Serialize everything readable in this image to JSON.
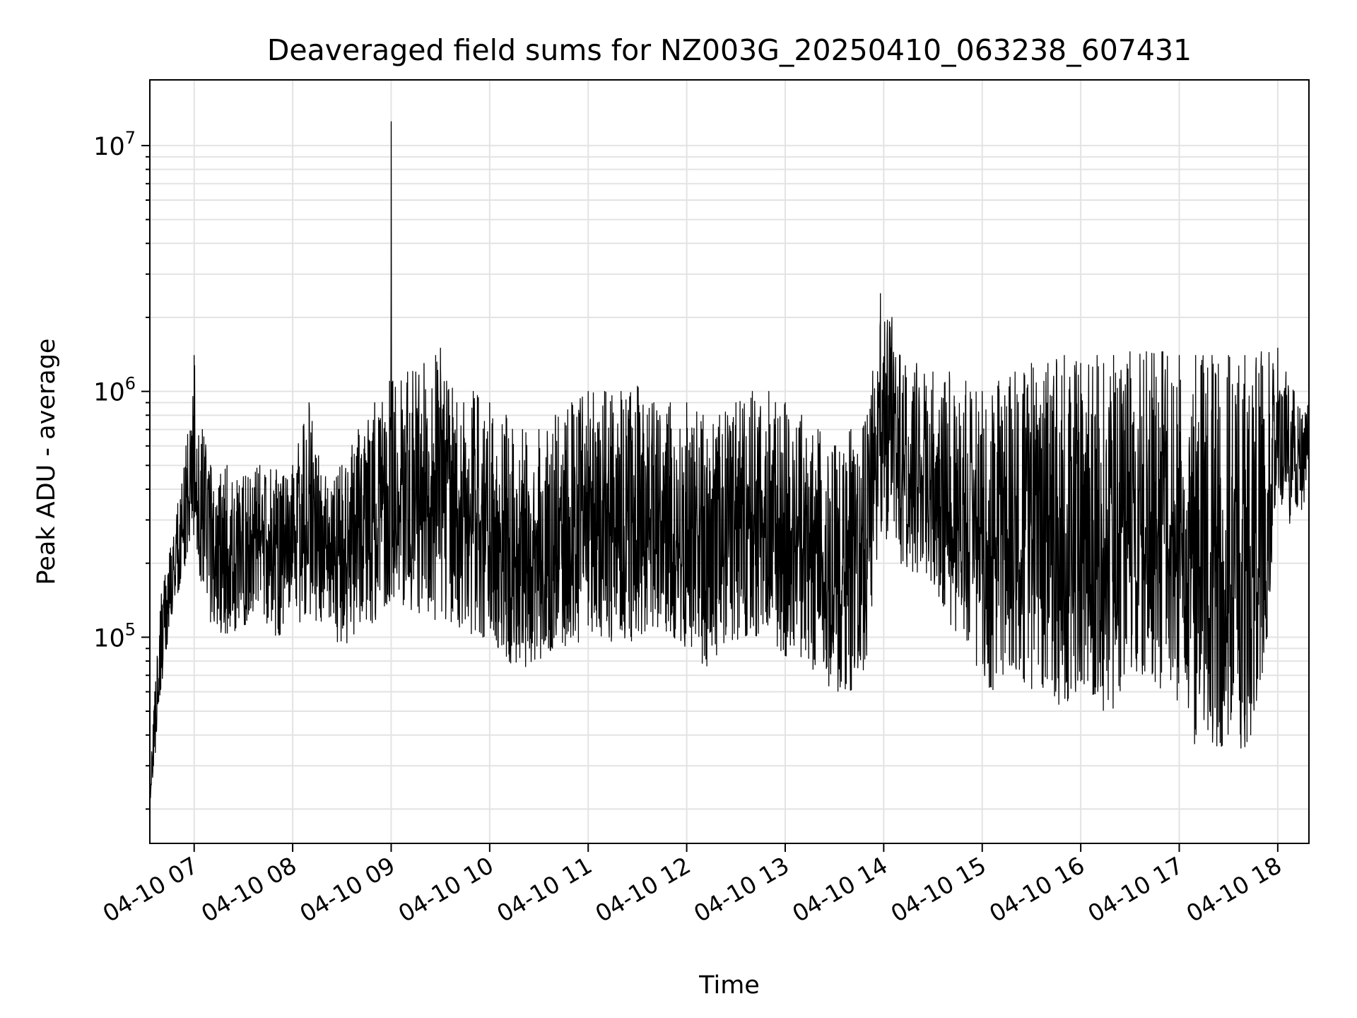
{
  "chart_data": {
    "type": "line",
    "title": "Deaveraged field sums for NZ003G_20250410_063238_607431",
    "xlabel": "Time",
    "ylabel": "Peak ADU - average",
    "yscale": "log",
    "xlim": [
      "2025-04-10 06:33",
      "2025-04-10 18:19"
    ],
    "ylim": [
      14500,
      18500000
    ],
    "grid": true,
    "line_color": "#000000",
    "x_ticks": [
      "04-10 07",
      "04-10 08",
      "04-10 09",
      "04-10 10",
      "04-10 11",
      "04-10 12",
      "04-10 13",
      "04-10 14",
      "04-10 15",
      "04-10 16",
      "04-10 17",
      "04-10 18"
    ],
    "y_ticks": [
      {
        "value": 100000,
        "base": "10",
        "exp": "5"
      },
      {
        "value": 1000000,
        "base": "10",
        "exp": "6"
      },
      {
        "value": 10000000,
        "base": "10",
        "exp": "7"
      }
    ],
    "x": [
      "06:33",
      "06:36",
      "06:40",
      "06:45",
      "06:50",
      "06:55",
      "07:00",
      "07:05",
      "07:10",
      "07:20",
      "07:30",
      "07:40",
      "07:50",
      "08:00",
      "08:10",
      "08:20",
      "08:30",
      "08:40",
      "08:50",
      "08:59",
      "09:00",
      "09:01",
      "09:10",
      "09:20",
      "09:30",
      "09:40",
      "09:50",
      "10:00",
      "10:10",
      "10:20",
      "10:30",
      "10:40",
      "10:50",
      "11:00",
      "11:10",
      "11:20",
      "11:30",
      "11:40",
      "11:50",
      "12:00",
      "12:10",
      "12:20",
      "12:30",
      "12:40",
      "12:50",
      "13:00",
      "13:10",
      "13:20",
      "13:30",
      "13:40",
      "13:50",
      "13:58",
      "14:05",
      "14:10",
      "14:20",
      "14:30",
      "14:40",
      "14:50",
      "15:00",
      "15:10",
      "15:20",
      "15:30",
      "15:40",
      "15:50",
      "16:00",
      "16:10",
      "16:20",
      "16:30",
      "16:40",
      "16:50",
      "17:00",
      "17:10",
      "17:20",
      "17:30",
      "17:40",
      "17:50",
      "18:00",
      "18:05",
      "18:10",
      "18:15",
      "18:19"
    ],
    "series": [
      {
        "low": [
          21000,
          30000,
          60000,
          110000,
          150000,
          200000,
          250000,
          150000,
          110000,
          100000,
          110000,
          120000,
          100000,
          110000,
          120000,
          110000,
          90000,
          100000,
          110000,
          140000,
          140000,
          140000,
          130000,
          110000,
          120000,
          110000,
          100000,
          100000,
          80000,
          70000,
          80000,
          90000,
          90000,
          100000,
          100000,
          90000,
          100000,
          110000,
          100000,
          90000,
          70000,
          80000,
          90000,
          100000,
          100000,
          80000,
          80000,
          70000,
          60000,
          60000,
          70000,
          200000,
          300000,
          200000,
          180000,
          150000,
          110000,
          100000,
          60000,
          60000,
          70000,
          60000,
          60000,
          50000,
          60000,
          50000,
          50000,
          70000,
          70000,
          60000,
          50000,
          35000,
          35000,
          35000,
          35000,
          45000,
          400000,
          300000,
          250000,
          300000,
          500000
        ],
        "high": [
          25000,
          60000,
          150000,
          220000,
          350000,
          600000,
          1400000,
          700000,
          500000,
          500000,
          450000,
          500000,
          480000,
          500000,
          900000,
          450000,
          500000,
          700000,
          900000,
          1100000,
          12500000,
          1100000,
          1200000,
          1300000,
          1500000,
          900000,
          1000000,
          900000,
          800000,
          700000,
          700000,
          800000,
          900000,
          1000000,
          1000000,
          1000000,
          1050000,
          900000,
          900000,
          900000,
          800000,
          800000,
          900000,
          1000000,
          1000000,
          900000,
          800000,
          700000,
          600000,
          700000,
          800000,
          2500000,
          2000000,
          1400000,
          1300000,
          1200000,
          1200000,
          1100000,
          1000000,
          1100000,
          1200000,
          1300000,
          1300000,
          1400000,
          1300000,
          1400000,
          1400000,
          1450000,
          1450000,
          1450000,
          1400000,
          1400000,
          1400000,
          1400000,
          1400000,
          1450000,
          1500000,
          1200000,
          1000000,
          800000,
          1000000
        ]
      }
    ]
  }
}
